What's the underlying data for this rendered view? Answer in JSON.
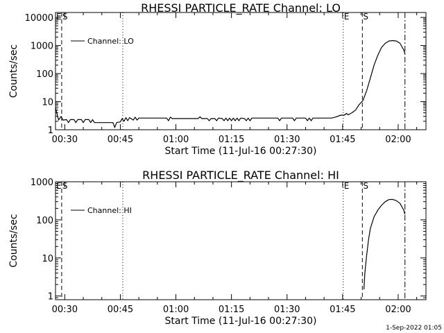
{
  "footer": {
    "date": "1-Sep-2022 01:05"
  },
  "chart_data": [
    {
      "type": "line",
      "title": "RHESSI PARTICLE_RATE Channel: LO",
      "xlabel": "Start Time (11-Jul-16 00:27:30)",
      "ylabel": "Counts/sec",
      "xlim": [
        "00:27:30",
        "02:07:30"
      ],
      "ylim": [
        1,
        15000
      ],
      "y_scale": "log",
      "grid": false,
      "legend_position": "top-left",
      "x_ticks": [
        "00:30",
        "00:45",
        "01:00",
        "01:15",
        "01:30",
        "01:45",
        "02:00"
      ],
      "y_ticks": [
        "1",
        "10",
        "100",
        "1000",
        "10000"
      ],
      "markers": [
        {
          "time": "00:27:30",
          "label": "E",
          "style": "dotted"
        },
        {
          "time": "00:29:10",
          "label": "S",
          "style": "dashed"
        },
        {
          "time": "00:45:40",
          "label": "",
          "style": "dotted"
        },
        {
          "time": "01:45:10",
          "label": "E",
          "style": "dotted"
        },
        {
          "time": "01:50:20",
          "label": "S",
          "style": "dashed"
        },
        {
          "time": "02:01:50",
          "label": "",
          "style": "dashdot"
        }
      ],
      "series": [
        {
          "name": "Channel: LO",
          "points": [
            [
              "00:27:30",
              6
            ],
            [
              "00:28:20",
              2.2
            ],
            [
              "00:29:00",
              3.0
            ],
            [
              "00:29:30",
              2.2
            ],
            [
              "00:30:30",
              2.3
            ],
            [
              "00:31:00",
              1.8
            ],
            [
              "00:31:30",
              2.3
            ],
            [
              "00:32:30",
              2.3
            ],
            [
              "00:33:00",
              1.8
            ],
            [
              "00:33:30",
              2.3
            ],
            [
              "00:34:30",
              2.3
            ],
            [
              "00:35:00",
              1.8
            ],
            [
              "00:35:30",
              2.3
            ],
            [
              "00:36:30",
              2.3
            ],
            [
              "00:37:00",
              1.8
            ],
            [
              "00:37:30",
              2.3
            ],
            [
              "00:38:00",
              1.8
            ],
            [
              "00:43:00",
              1.8
            ],
            [
              "00:43:30",
              1.2
            ],
            [
              "00:44:00",
              1.8
            ],
            [
              "00:45:00",
              1.9
            ],
            [
              "00:45:30",
              2.5
            ],
            [
              "00:46:00",
              2.0
            ],
            [
              "00:46:30",
              2.7
            ],
            [
              "00:47:00",
              2.1
            ],
            [
              "00:47:30",
              2.7
            ],
            [
              "00:48:30",
              2.2
            ],
            [
              "00:49:00",
              2.8
            ],
            [
              "00:49:30",
              2.2
            ],
            [
              "00:50:00",
              2.6
            ],
            [
              "00:57:30",
              2.6
            ],
            [
              "00:58:00",
              2.1
            ],
            [
              "00:58:30",
              2.8
            ],
            [
              "00:59:00",
              2.5
            ],
            [
              "01:06:00",
              2.5
            ],
            [
              "01:06:30",
              2.9
            ],
            [
              "01:07:00",
              2.5
            ],
            [
              "01:08:30",
              2.5
            ],
            [
              "01:09:00",
              2.1
            ],
            [
              "01:09:30",
              2.5
            ],
            [
              "01:10:30",
              2.5
            ],
            [
              "01:11:00",
              2.1
            ],
            [
              "01:11:30",
              2.6
            ],
            [
              "01:12:30",
              2.5
            ],
            [
              "01:13:00",
              2.1
            ],
            [
              "01:13:30",
              2.6
            ],
            [
              "01:14:00",
              2.1
            ],
            [
              "01:14:30",
              2.6
            ],
            [
              "01:15:00",
              2.1
            ],
            [
              "01:15:30",
              2.6
            ],
            [
              "01:16:00",
              2.1
            ],
            [
              "01:16:30",
              2.6
            ],
            [
              "01:17:00",
              2.1
            ],
            [
              "01:17:30",
              2.6
            ],
            [
              "01:18:30",
              2.5
            ],
            [
              "01:19:00",
              2.1
            ],
            [
              "01:19:30",
              2.6
            ],
            [
              "01:20:00",
              2.1
            ],
            [
              "01:20:30",
              2.6
            ],
            [
              "01:27:30",
              2.6
            ],
            [
              "01:28:00",
              2.1
            ],
            [
              "01:28:30",
              2.6
            ],
            [
              "01:31:30",
              2.6
            ],
            [
              "01:32:00",
              2.1
            ],
            [
              "01:32:30",
              2.6
            ],
            [
              "01:35:00",
              2.6
            ],
            [
              "01:35:30",
              2.1
            ],
            [
              "01:36:00",
              2.6
            ],
            [
              "01:36:30",
              2.1
            ],
            [
              "01:37:00",
              2.6
            ],
            [
              "01:42:00",
              2.6
            ],
            [
              "01:43:00",
              2.8
            ],
            [
              "01:44:30",
              3.3
            ],
            [
              "01:45:30",
              3.3
            ],
            [
              "01:46:00",
              3.8
            ],
            [
              "01:46:30",
              3.4
            ],
            [
              "01:47:30",
              4.0
            ],
            [
              "01:48:30",
              5.0
            ],
            [
              "01:49:30",
              8
            ],
            [
              "01:50:30",
              11
            ],
            [
              "01:51:30",
              25
            ],
            [
              "01:52:30",
              70
            ],
            [
              "01:53:30",
              200
            ],
            [
              "01:54:30",
              450
            ],
            [
              "01:55:30",
              850
            ],
            [
              "01:56:30",
              1200
            ],
            [
              "01:57:30",
              1450
            ],
            [
              "01:58:30",
              1500
            ],
            [
              "01:59:30",
              1450
            ],
            [
              "02:00:30",
              1200
            ],
            [
              "02:01:00",
              900
            ],
            [
              "02:01:30",
              700
            ],
            [
              "02:01:50",
              500
            ]
          ]
        }
      ]
    },
    {
      "type": "line",
      "title": "RHESSI PARTICLE_RATE Channel: HI",
      "xlabel": "Start Time (11-Jul-16 00:27:30)",
      "ylabel": "Counts/sec",
      "xlim": [
        "00:27:30",
        "02:07:30"
      ],
      "ylim": [
        0.8,
        1000
      ],
      "y_scale": "log",
      "grid": false,
      "legend_position": "top-left",
      "x_ticks": [
        "00:30",
        "00:45",
        "01:00",
        "01:15",
        "01:30",
        "01:45",
        "02:00"
      ],
      "y_ticks": [
        "1",
        "10",
        "100",
        "1000"
      ],
      "markers": [
        {
          "time": "00:27:30",
          "label": "E",
          "style": "dotted"
        },
        {
          "time": "00:29:10",
          "label": "S",
          "style": "dashed"
        },
        {
          "time": "00:45:40",
          "label": "",
          "style": "dotted"
        },
        {
          "time": "01:45:10",
          "label": "E",
          "style": "dotted"
        },
        {
          "time": "01:50:20",
          "label": "S",
          "style": "dashed"
        },
        {
          "time": "02:01:50",
          "label": "",
          "style": "dashdot"
        }
      ],
      "series": [
        {
          "name": "Channel: HI",
          "points": [
            [
              "01:50:45",
              1.5
            ],
            [
              "01:51:00",
              4
            ],
            [
              "01:51:30",
              12
            ],
            [
              "01:52:00",
              30
            ],
            [
              "01:52:30",
              60
            ],
            [
              "01:53:30",
              120
            ],
            [
              "01:54:30",
              180
            ],
            [
              "01:55:30",
              240
            ],
            [
              "01:56:30",
              300
            ],
            [
              "01:57:30",
              340
            ],
            [
              "01:58:30",
              345
            ],
            [
              "01:59:30",
              320
            ],
            [
              "02:00:30",
              270
            ],
            [
              "02:01:30",
              180
            ],
            [
              "02:01:50",
              140
            ]
          ]
        }
      ]
    }
  ]
}
